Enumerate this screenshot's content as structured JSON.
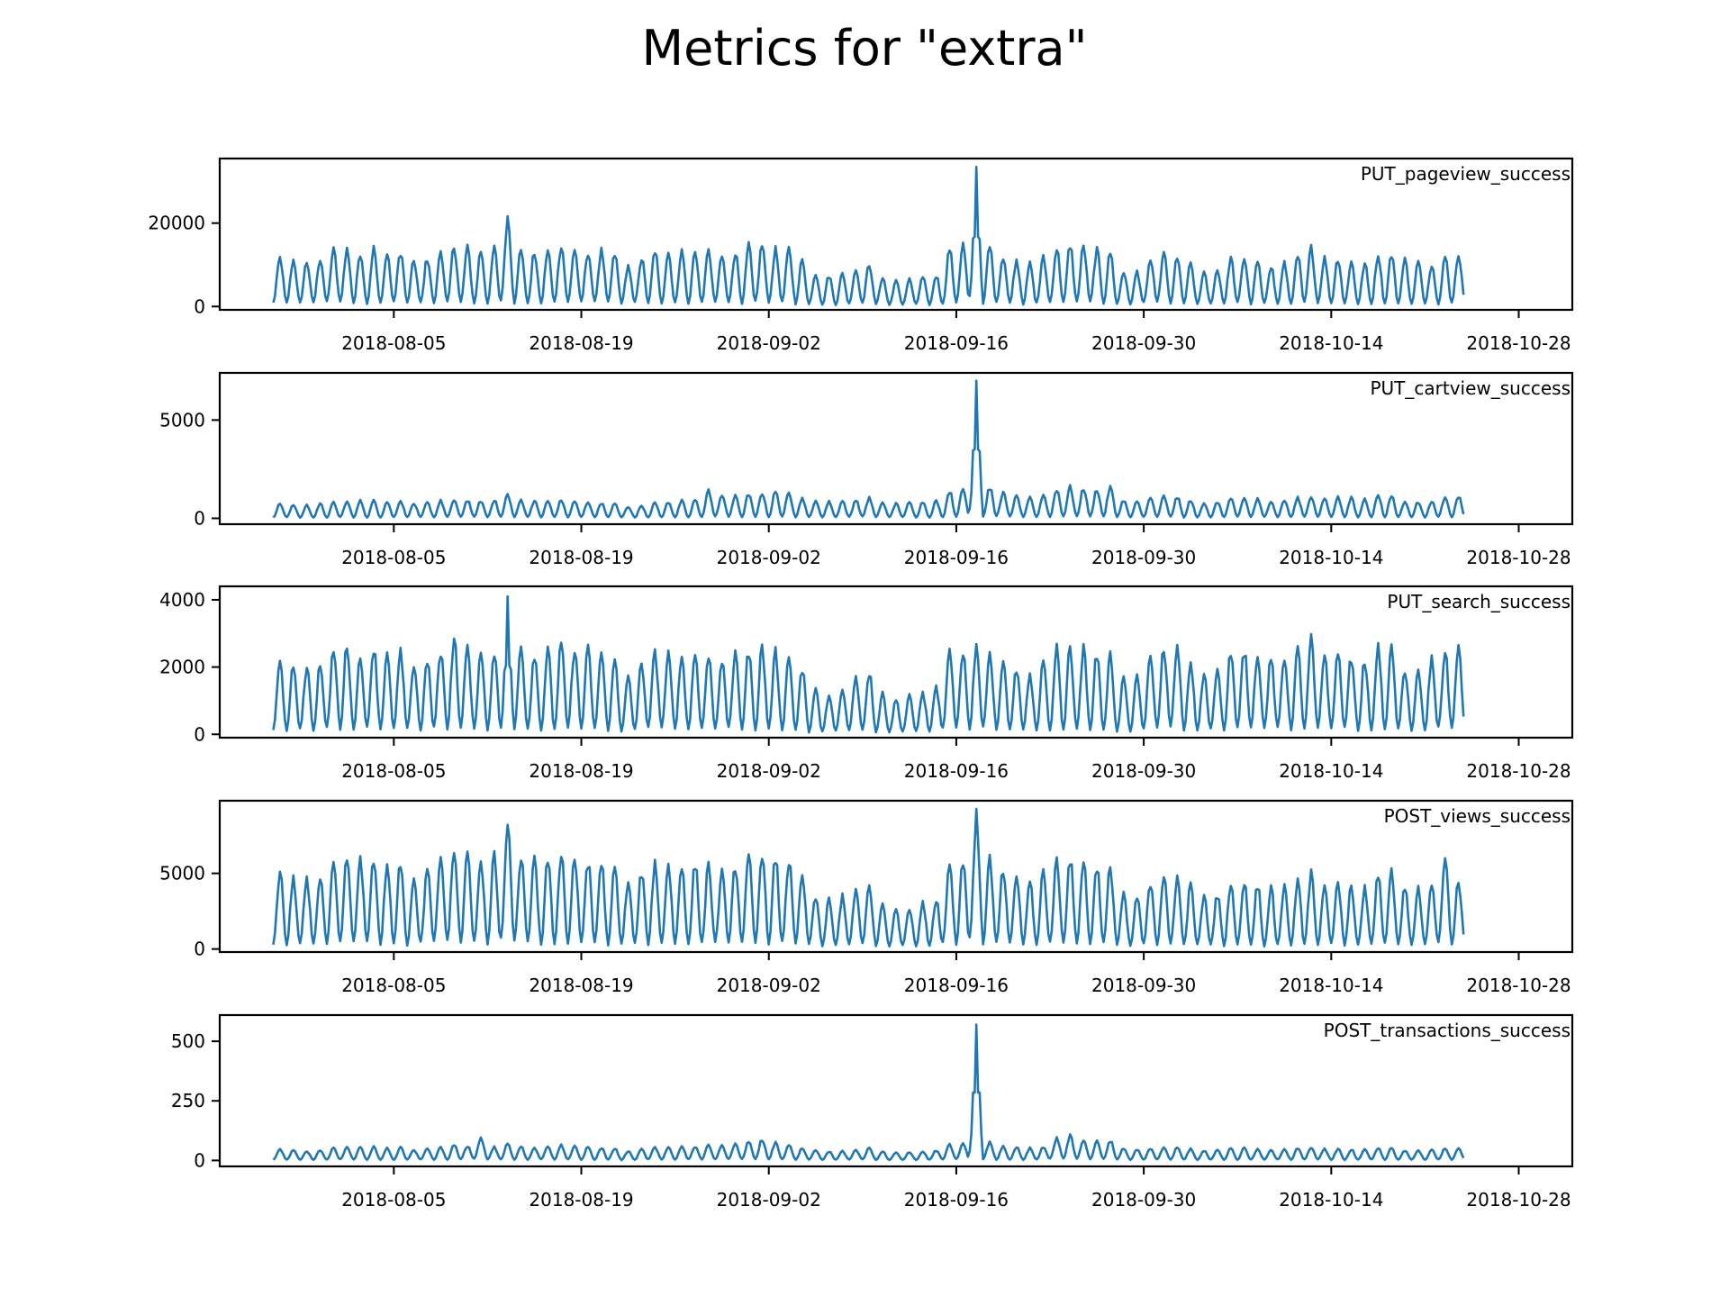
{
  "figure": {
    "title": "Metrics for \"extra\""
  },
  "style": {
    "line_color": "#1f77b4",
    "axis_color": "#000000"
  },
  "chart_data": [
    {
      "type": "line",
      "series": [
        {
          "name": "PUT_pageview_success",
          "x_start": "2018-07-27",
          "x_end": "2018-10-23"
        }
      ],
      "annotation": "PUT_pageview_success",
      "x_ticks": [
        "2018-08-05",
        "2018-08-19",
        "2018-09-02",
        "2018-09-16",
        "2018-09-30",
        "2018-10-14",
        "2018-10-28"
      ],
      "y_ticks": [
        0,
        20000
      ],
      "ylim": [
        -800,
        35500
      ],
      "daily_peaks": [
        12500,
        12000,
        11500,
        12500,
        14500,
        14800,
        14000,
        15000,
        13500,
        14200,
        11800,
        12500,
        14500,
        15500,
        15000,
        14500,
        15000,
        23000,
        15000,
        14000,
        14500,
        16000,
        14800,
        14200,
        14300,
        13500,
        10500,
        12500,
        14500,
        14000,
        14200,
        14500,
        14200,
        13000,
        14000,
        15500,
        16000,
        14500,
        14800,
        12000,
        8500,
        8000,
        8500,
        9500,
        11000,
        7500,
        6500,
        7000,
        7500,
        8000,
        15000,
        16000,
        33500,
        15500,
        13000,
        12000,
        11000,
        12500,
        15000,
        16000,
        15500,
        14500,
        14000,
        9000,
        9000,
        12000,
        13500,
        13000,
        11000,
        8500,
        9500,
        12500,
        12500,
        11500,
        10500,
        11000,
        13000,
        15000,
        12500,
        12500,
        11500,
        11000,
        13500,
        13500,
        12000,
        11500,
        11000,
        13000,
        13500
      ]
    },
    {
      "type": "line",
      "series": [
        {
          "name": "PUT_cartview_success",
          "x_start": "2018-07-27",
          "x_end": "2018-10-23"
        }
      ],
      "annotation": "PUT_cartview_success",
      "x_ticks": [
        "2018-08-05",
        "2018-08-19",
        "2018-09-02",
        "2018-09-16",
        "2018-09-30",
        "2018-10-14",
        "2018-10-28"
      ],
      "y_ticks": [
        0,
        5000
      ],
      "ylim": [
        -300,
        7400
      ],
      "daily_peaks": [
        800,
        750,
        700,
        800,
        850,
        900,
        950,
        950,
        900,
        950,
        800,
        850,
        950,
        1000,
        1000,
        950,
        1000,
        1300,
        1000,
        950,
        950,
        1000,
        950,
        900,
        850,
        800,
        650,
        700,
        850,
        900,
        950,
        1000,
        1500,
        1300,
        1200,
        1350,
        1400,
        1450,
        1400,
        1100,
        900,
        900,
        950,
        1000,
        1100,
        850,
        800,
        850,
        900,
        950,
        1500,
        1600,
        7000,
        1700,
        1400,
        1200,
        1100,
        1300,
        1600,
        1700,
        1650,
        1600,
        1700,
        1000,
        900,
        1100,
        1200,
        1150,
        1000,
        850,
        900,
        1100,
        1100,
        1050,
        950,
        1000,
        1100,
        1200,
        1100,
        1150,
        1100,
        1050,
        1300,
        1250,
        900,
        900,
        950,
        1100,
        1200
      ]
    },
    {
      "type": "line",
      "series": [
        {
          "name": "PUT_search_success",
          "x_start": "2018-07-27",
          "x_end": "2018-10-23"
        }
      ],
      "annotation": "PUT_search_success",
      "x_ticks": [
        "2018-08-05",
        "2018-08-19",
        "2018-09-02",
        "2018-09-16",
        "2018-09-30",
        "2018-10-14",
        "2018-10-28"
      ],
      "y_ticks": [
        0,
        2000,
        4000
      ],
      "ylim": [
        -100,
        4400
      ],
      "daily_peaks": [
        2300,
        2200,
        2100,
        2300,
        2700,
        2900,
        2500,
        2800,
        2500,
        2600,
        2200,
        2400,
        2700,
        3100,
        2800,
        2600,
        2700,
        4100,
        2800,
        2600,
        2700,
        2900,
        2800,
        2700,
        2600,
        2400,
        1800,
        2300,
        2600,
        2500,
        2500,
        2600,
        2500,
        2400,
        2500,
        2700,
        2800,
        2600,
        2500,
        2100,
        1400,
        1200,
        1400,
        1800,
        2000,
        1300,
        1100,
        1200,
        1300,
        1500,
        2600,
        2700,
        2900,
        2600,
        2300,
        2100,
        1900,
        2300,
        2700,
        2800,
        2700,
        2600,
        2500,
        1800,
        1800,
        2500,
        2800,
        2700,
        2300,
        1900,
        2100,
        2700,
        2700,
        2600,
        2400,
        2500,
        2700,
        3000,
        2600,
        2600,
        2500,
        2400,
        2800,
        2700,
        2100,
        2000,
        2400,
        2600,
        2700
      ]
    },
    {
      "type": "line",
      "series": [
        {
          "name": "POST_views_success",
          "x_start": "2018-07-27",
          "x_end": "2018-10-23"
        }
      ],
      "annotation": "POST_views_success",
      "x_ticks": [
        "2018-08-05",
        "2018-08-19",
        "2018-09-02",
        "2018-09-16",
        "2018-09-30",
        "2018-10-14",
        "2018-10-28"
      ],
      "y_ticks": [
        0,
        5000
      ],
      "ylim": [
        -200,
        9800
      ],
      "daily_peaks": [
        5500,
        5000,
        4800,
        5200,
        6000,
        6500,
        6200,
        6500,
        6000,
        6300,
        5200,
        5600,
        6500,
        7000,
        6800,
        6400,
        6600,
        8500,
        6600,
        6200,
        6400,
        7000,
        6600,
        6300,
        6200,
        5800,
        4800,
        5500,
        6200,
        6000,
        6000,
        6100,
        5900,
        5600,
        6000,
        6500,
        7000,
        6500,
        6300,
        5200,
        3800,
        3500,
        3800,
        4200,
        4500,
        3200,
        2800,
        3000,
        3200,
        3600,
        6200,
        6500,
        9300,
        6400,
        5600,
        5200,
        4800,
        5600,
        6200,
        6500,
        6300,
        6000,
        5800,
        3800,
        3700,
        4800,
        5300,
        5100,
        4500,
        3700,
        3900,
        4800,
        4800,
        4600,
        4300,
        4400,
        4900,
        5300,
        4700,
        4600,
        4500,
        4300,
        5200,
        5500,
        4500,
        4300,
        4800,
        6500,
        4800
      ]
    },
    {
      "type": "line",
      "series": [
        {
          "name": "POST_transactions_success",
          "x_start": "2018-07-27",
          "x_end": "2018-10-23"
        }
      ],
      "annotation": "POST_transactions_success",
      "x_ticks": [
        "2018-08-05",
        "2018-08-19",
        "2018-09-02",
        "2018-09-16",
        "2018-09-30",
        "2018-10-14",
        "2018-10-28"
      ],
      "y_ticks": [
        0,
        250,
        500
      ],
      "ylim": [
        -25,
        610
      ],
      "daily_peaks": [
        50,
        45,
        42,
        48,
        55,
        60,
        58,
        62,
        55,
        58,
        48,
        52,
        60,
        70,
        65,
        100,
        60,
        75,
        62,
        58,
        60,
        68,
        62,
        60,
        58,
        55,
        42,
        50,
        58,
        60,
        62,
        64,
        70,
        68,
        72,
        85,
        95,
        80,
        70,
        55,
        45,
        40,
        42,
        48,
        55,
        40,
        35,
        38,
        40,
        45,
        70,
        75,
        570,
        80,
        65,
        60,
        55,
        62,
        100,
        110,
        95,
        85,
        90,
        55,
        50,
        55,
        60,
        58,
        52,
        45,
        48,
        55,
        55,
        52,
        48,
        50,
        55,
        60,
        52,
        52,
        50,
        48,
        58,
        55,
        45,
        44,
        48,
        55,
        52
      ]
    }
  ]
}
